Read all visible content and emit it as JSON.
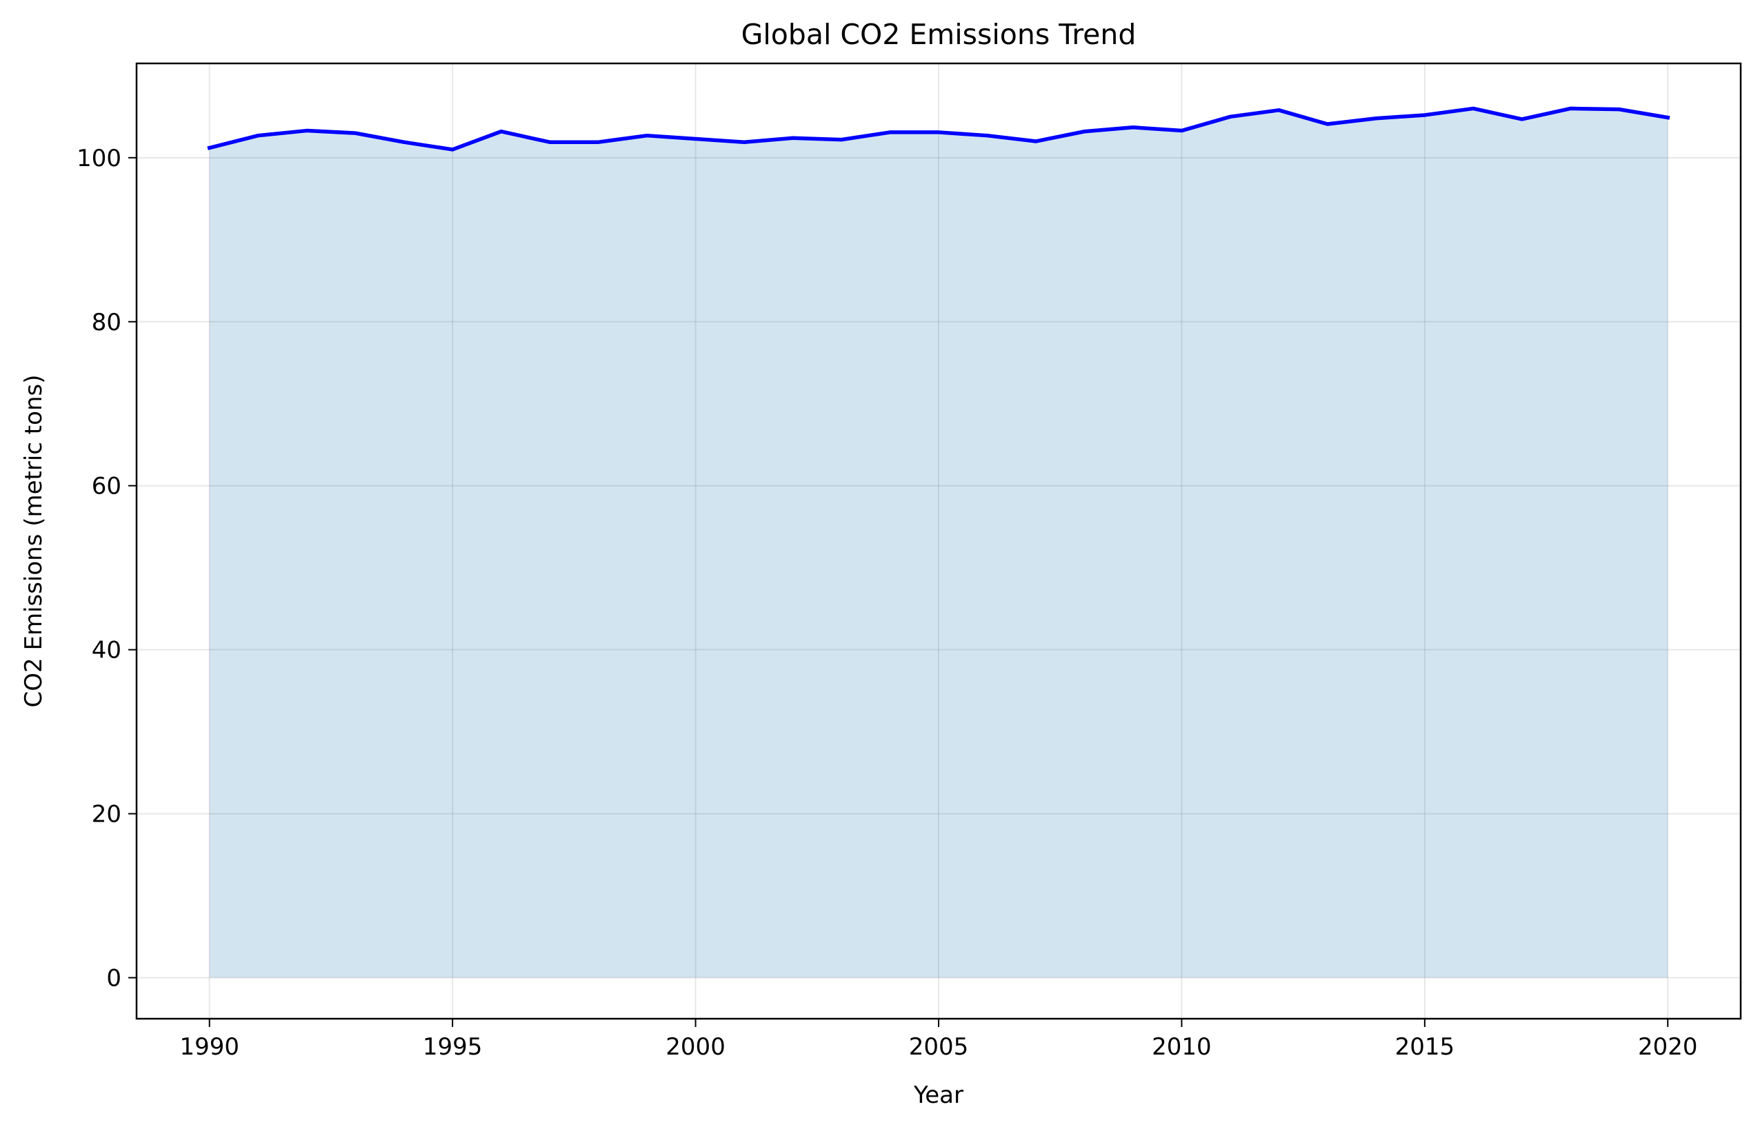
{
  "chart_data": {
    "type": "area",
    "title": "Global CO2 Emissions Trend",
    "xlabel": "Year",
    "ylabel": "CO2 Emissions (metric tons)",
    "xlim": [
      1988.5,
      2021.5
    ],
    "ylim": [
      -5,
      111.5
    ],
    "xticks": [
      1990,
      1995,
      2000,
      2005,
      2010,
      2015,
      2020
    ],
    "yticks": [
      0,
      20,
      40,
      60,
      80,
      100
    ],
    "grid": true,
    "legend": "none",
    "line_color": "#0000ff",
    "fill_color": "#1f77b4",
    "x": [
      1990,
      1991,
      1992,
      1993,
      1994,
      1995,
      1996,
      1997,
      1998,
      1999,
      2000,
      2001,
      2002,
      2003,
      2004,
      2005,
      2006,
      2007,
      2008,
      2009,
      2010,
      2011,
      2012,
      2013,
      2014,
      2015,
      2016,
      2017,
      2018,
      2019,
      2020
    ],
    "y": [
      101.2,
      102.7,
      103.3,
      103.0,
      101.9,
      101.0,
      103.2,
      101.9,
      101.9,
      102.7,
      102.3,
      101.9,
      102.4,
      102.2,
      103.1,
      103.1,
      102.7,
      102.0,
      103.2,
      103.7,
      103.3,
      105.0,
      105.8,
      104.1,
      104.8,
      105.2,
      106.0,
      104.7,
      106.0,
      105.9,
      104.9
    ]
  }
}
